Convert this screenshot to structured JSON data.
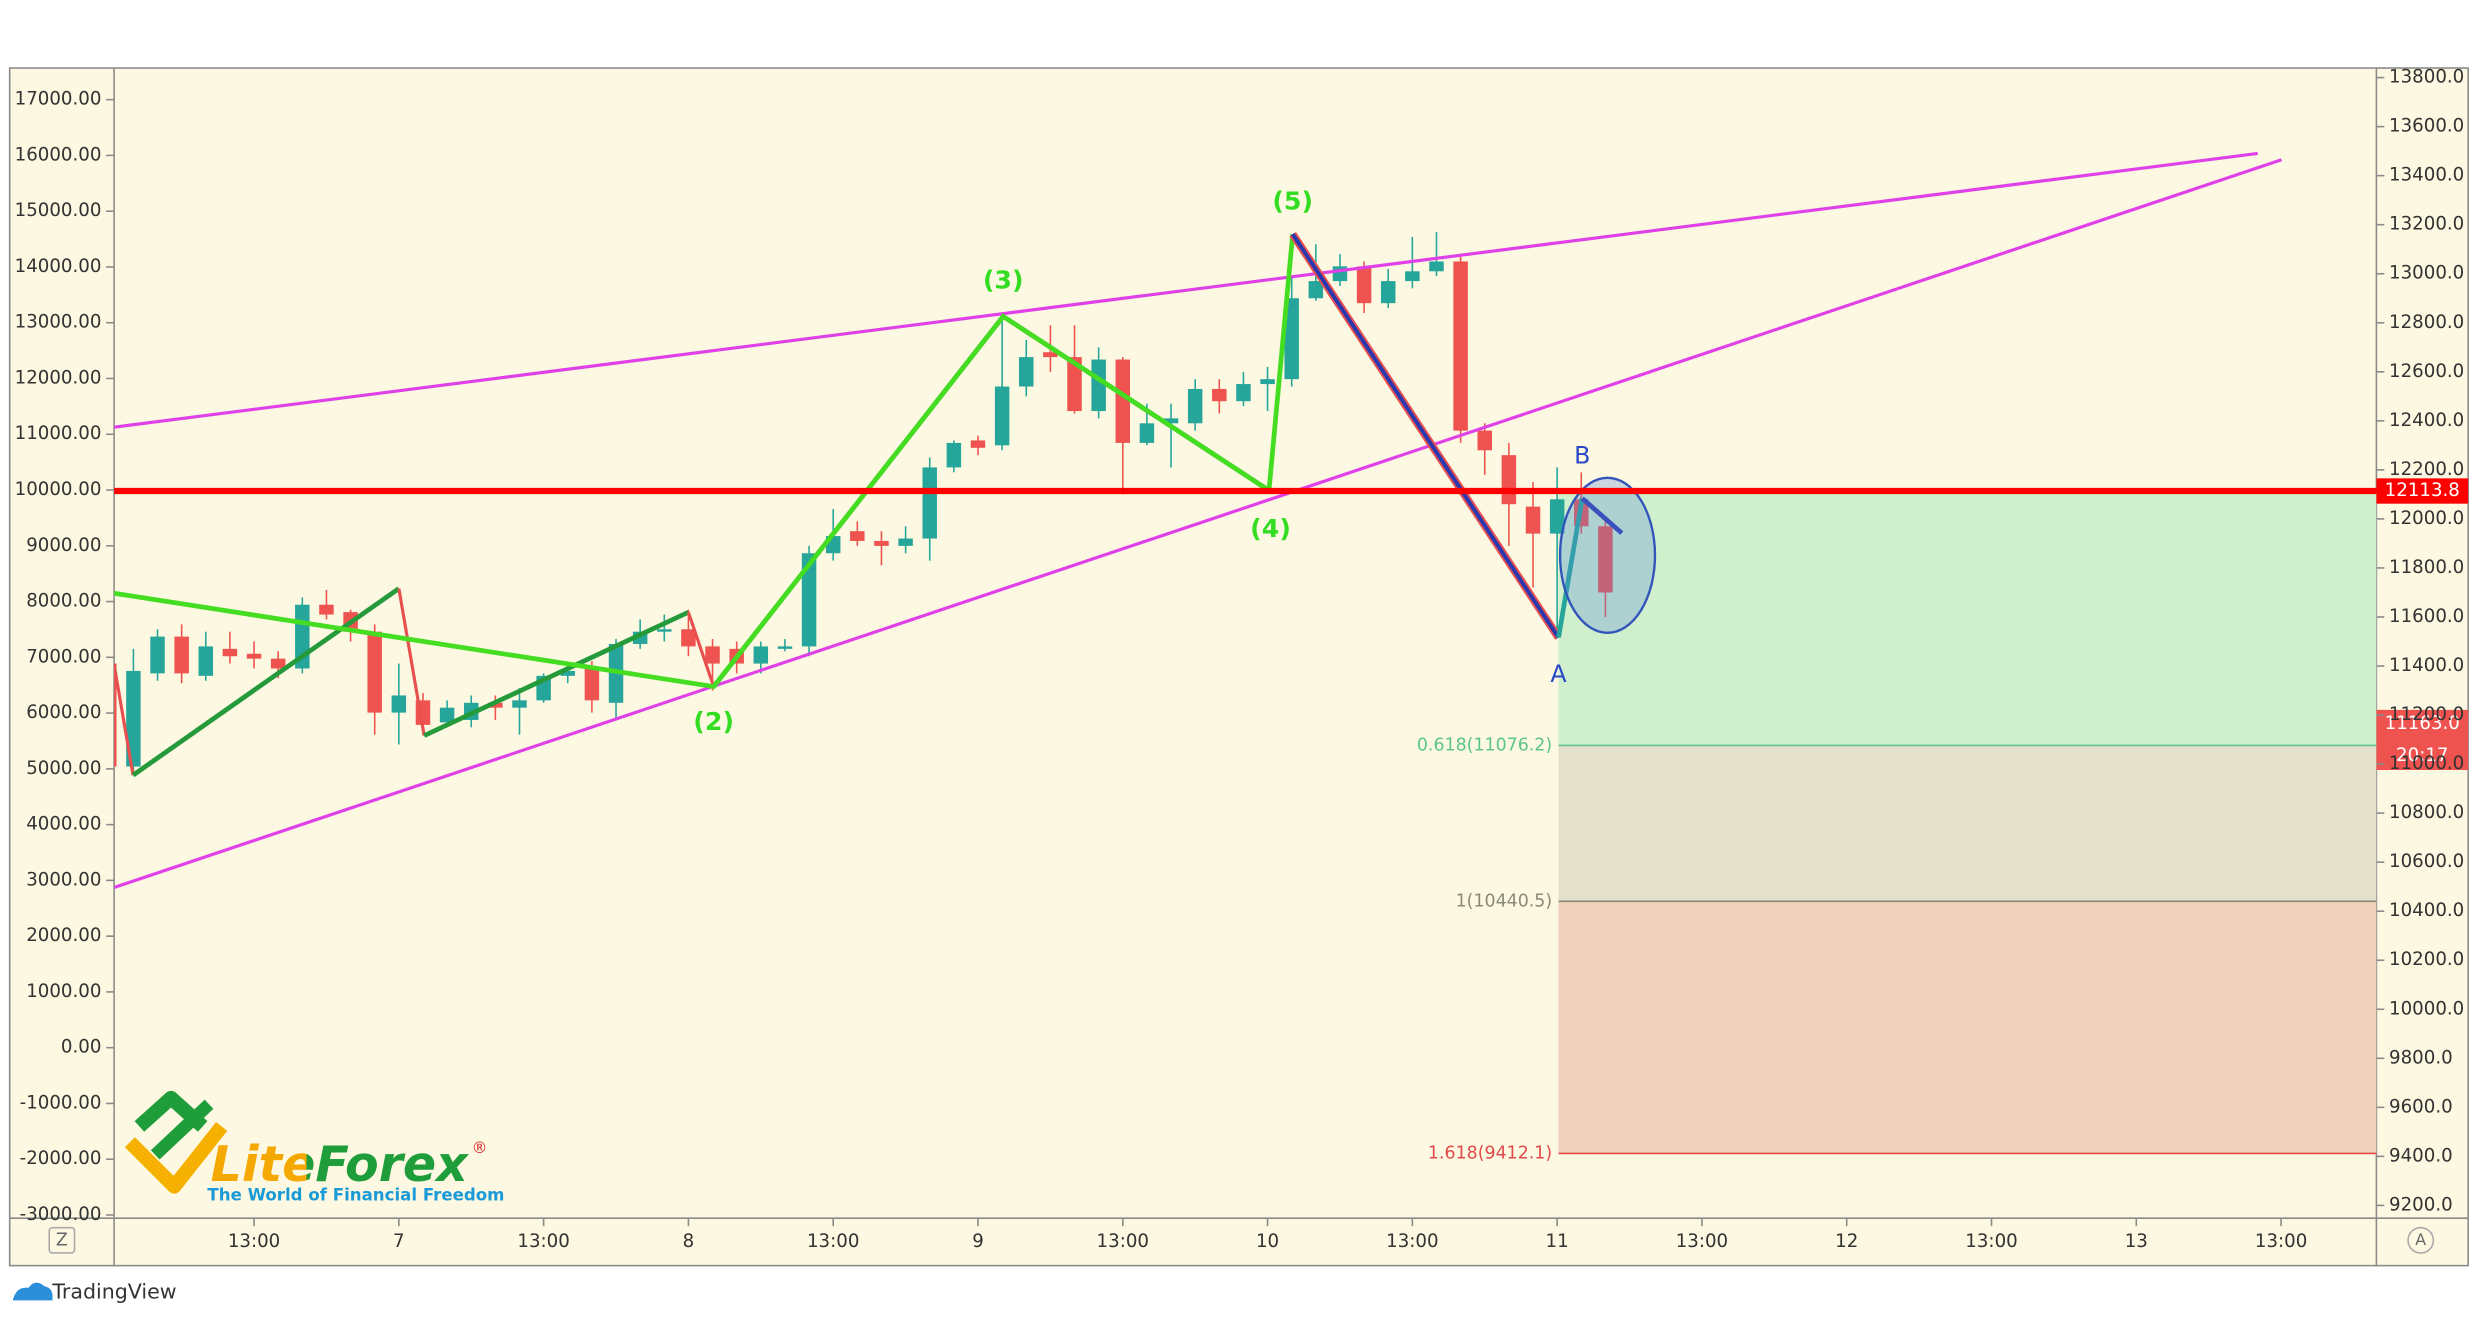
{
  "chart_data": {
    "type": "candlestick",
    "axis": "y2",
    "up_color": "#26a69a",
    "down_color": "#ef5350",
    "x": [
      0,
      2,
      4,
      6,
      8,
      10,
      12,
      14,
      16,
      18,
      20,
      22,
      24,
      26,
      28,
      30,
      32,
      34,
      36,
      38,
      40,
      42,
      44,
      46,
      48,
      50,
      52,
      54,
      56,
      58,
      60,
      62,
      64,
      66,
      68,
      70,
      72,
      74,
      76,
      78,
      80,
      82,
      84,
      86,
      88,
      90,
      92,
      94,
      96,
      98,
      100,
      102,
      104,
      106,
      108,
      110,
      112,
      114,
      116,
      118,
      120,
      122,
      124
    ],
    "open": [
      11410,
      10990,
      11370,
      11520,
      11360,
      11470,
      11450,
      11430,
      11390,
      11650,
      11620,
      11540,
      11210,
      11260,
      11170,
      11180,
      11250,
      11230,
      11260,
      11360,
      11390,
      11250,
      11490,
      11540,
      11550,
      11480,
      11470,
      11410,
      11470,
      11480,
      11860,
      11950,
      11910,
      11890,
      11920,
      12210,
      12320,
      12300,
      12540,
      12680,
      12660,
      12440,
      12650,
      12310,
      12390,
      12390,
      12530,
      12480,
      12550,
      12570,
      12900,
      12970,
      13030,
      12880,
      12970,
      13010,
      13050,
      12360,
      12260,
      12050,
      11940,
      12080,
      11970
    ],
    "close": [
      10990,
      11380,
      11520,
      11370,
      11480,
      11440,
      11430,
      11390,
      11650,
      11610,
      11540,
      11210,
      11280,
      11160,
      11230,
      11250,
      11230,
      11260,
      11360,
      11380,
      11260,
      11490,
      11540,
      11550,
      11480,
      11410,
      11410,
      11480,
      11480,
      11860,
      11930,
      11910,
      11890,
      11920,
      12210,
      12310,
      12290,
      12540,
      12660,
      12660,
      12440,
      12650,
      12310,
      12390,
      12410,
      12530,
      12480,
      12550,
      12570,
      12900,
      12970,
      13030,
      12880,
      12970,
      13010,
      13050,
      12360,
      12280,
      12060,
      11940,
      12080,
      11970,
      11700
    ],
    "high": [
      11470,
      11470,
      11550,
      11570,
      11540,
      11540,
      11500,
      11460,
      11680,
      11710,
      11630,
      11570,
      11410,
      11290,
      11260,
      11280,
      11280,
      11310,
      11370,
      11410,
      11420,
      11510,
      11590,
      11610,
      11630,
      11510,
      11500,
      11500,
      11510,
      11890,
      12040,
      11990,
      11950,
      11970,
      12250,
      12320,
      12340,
      12830,
      12730,
      12790,
      12790,
      12700,
      12660,
      12470,
      12470,
      12570,
      12570,
      12600,
      12620,
      12990,
      13120,
      13080,
      13050,
      13020,
      13150,
      13170,
      13070,
      12390,
      12310,
      12150,
      12210,
      12190,
      11990
    ],
    "low": [
      10960,
      10960,
      11340,
      11330,
      11340,
      11410,
      11390,
      11350,
      11370,
      11590,
      11500,
      11120,
      11080,
      11120,
      11150,
      11150,
      11180,
      11120,
      11250,
      11330,
      11210,
      11180,
      11470,
      11500,
      11440,
      11300,
      11370,
      11370,
      11460,
      11440,
      11830,
      11890,
      11810,
      11860,
      11830,
      12190,
      12260,
      12280,
      12500,
      12600,
      12430,
      12410,
      12100,
      12300,
      12210,
      12360,
      12430,
      12460,
      12440,
      12540,
      12890,
      12950,
      12840,
      12860,
      12940,
      12990,
      12310,
      12180,
      11890,
      11720,
      11540,
      11940,
      11600
    ],
    "xlim": [
      0.4,
      187.9
    ],
    "xticks": [
      {
        "value": 12,
        "label": "13:00"
      },
      {
        "value": 24,
        "label": "7"
      },
      {
        "value": 36,
        "label": "13:00"
      },
      {
        "value": 48,
        "label": "8"
      },
      {
        "value": 60,
        "label": "13:00"
      },
      {
        "value": 72,
        "label": "9"
      },
      {
        "value": 84,
        "label": "13:00"
      },
      {
        "value": 96,
        "label": "10"
      },
      {
        "value": 108,
        "label": "13:00"
      },
      {
        "value": 120,
        "label": "11"
      },
      {
        "value": 132,
        "label": "13:00"
      },
      {
        "value": 144,
        "label": "12"
      },
      {
        "value": 156,
        "label": "13:00"
      },
      {
        "value": 168,
        "label": "13"
      },
      {
        "value": 180,
        "label": "13:00"
      }
    ],
    "ylim": [
      -3057,
      17567
    ],
    "yticks": [
      {
        "value": 17000,
        "label": "17000.00"
      },
      {
        "value": 16000,
        "label": "16000.00"
      },
      {
        "value": 15000,
        "label": "15000.00"
      },
      {
        "value": 14000,
        "label": "14000.00"
      },
      {
        "value": 13000,
        "label": "13000.00"
      },
      {
        "value": 12000,
        "label": "12000.00"
      },
      {
        "value": 11000,
        "label": "11000.00"
      },
      {
        "value": 10000,
        "label": "10000.00"
      },
      {
        "value": 9000,
        "label": "9000.00"
      },
      {
        "value": 8000,
        "label": "8000.00"
      },
      {
        "value": 7000,
        "label": "7000.00"
      },
      {
        "value": 6000,
        "label": "6000.00"
      },
      {
        "value": 5000,
        "label": "5000.00"
      },
      {
        "value": 4000,
        "label": "4000.00"
      },
      {
        "value": 3000,
        "label": "3000.00"
      },
      {
        "value": 2000,
        "label": "2000.00"
      },
      {
        "value": 1000,
        "label": "1000.00"
      },
      {
        "value": 0,
        "label": "0.00"
      },
      {
        "value": -1000,
        "label": "-1000.00"
      },
      {
        "value": -2000,
        "label": "-2000.00"
      },
      {
        "value": -3000,
        "label": "-3000.00"
      }
    ],
    "y2lim": [
      9148,
      13839
    ],
    "y2ticks": [
      {
        "value": 13800,
        "label": "13800.0"
      },
      {
        "value": 13600,
        "label": "13600.0"
      },
      {
        "value": 13400,
        "label": "13400.0"
      },
      {
        "value": 13200,
        "label": "13200.0"
      },
      {
        "value": 13000,
        "label": "13000.0"
      },
      {
        "value": 12800,
        "label": "12800.0"
      },
      {
        "value": 12600,
        "label": "12600.0"
      },
      {
        "value": 12400,
        "label": "12400.0"
      },
      {
        "value": 12200,
        "label": "12200.0"
      },
      {
        "value": 12000,
        "label": "12000.0"
      },
      {
        "value": 11800,
        "label": "11800.0"
      },
      {
        "value": 11600,
        "label": "11600.0"
      },
      {
        "value": 11400,
        "label": "11400.0"
      },
      {
        "value": 11200,
        "label": "11200.0"
      },
      {
        "value": 11000,
        "label": "11000.0"
      },
      {
        "value": 10800,
        "label": "10800.0"
      },
      {
        "value": 10600,
        "label": "10600.0"
      },
      {
        "value": 10400,
        "label": "10400.0"
      },
      {
        "value": 10200,
        "label": "10200.0"
      },
      {
        "value": 10000,
        "label": "10000.0"
      },
      {
        "value": 9800,
        "label": "9800.0"
      },
      {
        "value": 9600,
        "label": "9600.0"
      },
      {
        "value": 9400,
        "label": "9400.0"
      },
      {
        "value": 9200,
        "label": "9200.0"
      }
    ],
    "price_line": {
      "value": 12113.8,
      "color": "#ff0000"
    },
    "last_price": {
      "value": 11163,
      "label": "11163.0",
      "color": "#ef5350"
    },
    "countdown": "20:17",
    "fib_levels": [
      {
        "value": 11076.2,
        "label": "0.618(11076.2)",
        "color": "#5cc48e",
        "fill": "#d0efcc"
      },
      {
        "value": 10440.5,
        "label": "1(10440.5)",
        "color": "#8a8a7a",
        "fill": "#e3e0cb"
      },
      {
        "value": 9412.1,
        "label": "1.618(9412.1)",
        "color": "#e04a4a",
        "fill": "#f3d2bd"
      }
    ],
    "annotations": [
      "(2)",
      "(3)",
      "(4)",
      "(5)",
      "A",
      "B"
    ]
  },
  "logo": {
    "name": "LiteForex",
    "mark": "®",
    "tagline": "The World of Financial Freedom"
  },
  "axis_buttons": [
    "Z",
    "A"
  ],
  "footer": "TradingView"
}
